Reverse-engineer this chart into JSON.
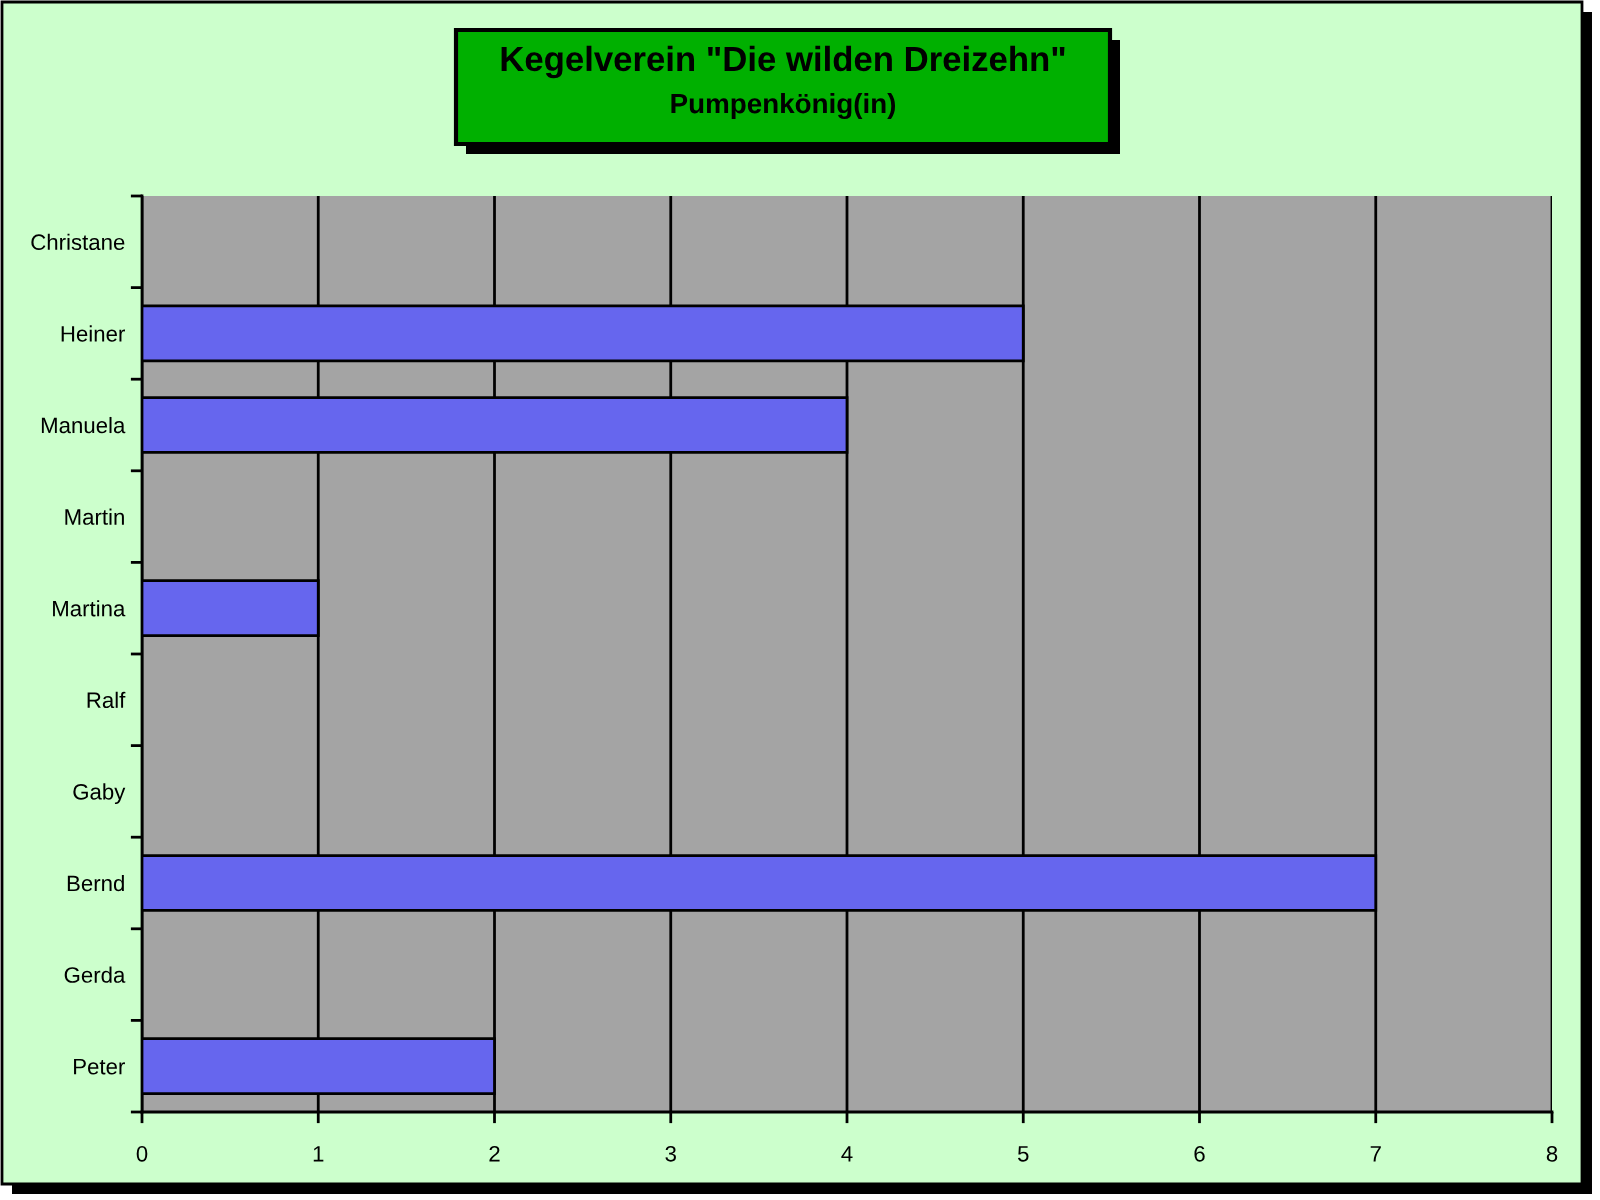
{
  "chart_data": {
    "type": "bar",
    "orientation": "horizontal",
    "title": "Kegelverein \"Die wilden Dreizehn\"",
    "subtitle": "Pumpenkönig(in)",
    "categories": [
      "Christane",
      "Heiner",
      "Manuela",
      "Martin",
      "Martina",
      "Ralf",
      "Gaby",
      "Bernd",
      "Gerda",
      "Peter"
    ],
    "values": [
      0,
      5,
      4,
      0,
      1,
      0,
      0,
      7,
      0,
      2
    ],
    "color": "#6666ee",
    "xlim": [
      0,
      8
    ],
    "xticks": [
      0,
      1,
      2,
      3,
      4,
      5,
      6,
      7,
      8
    ],
    "grid": "x"
  }
}
